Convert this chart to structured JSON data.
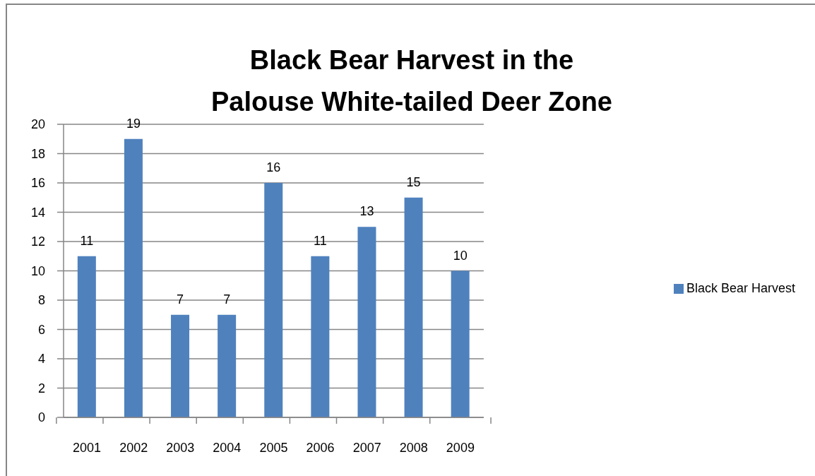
{
  "chart_data": {
    "type": "bar",
    "title": "Black Bear Harvest in the Palouse White-tailed Deer Zone",
    "categories": [
      "2001",
      "2002",
      "2003",
      "2004",
      "2005",
      "2006",
      "2007",
      "2008",
      "2009"
    ],
    "series": [
      {
        "name": "Black Bear Harvest",
        "color": "#4f81bd",
        "values": [
          11,
          19,
          7,
          7,
          16,
          11,
          13,
          15,
          10
        ]
      }
    ],
    "ylim": [
      0,
      20
    ],
    "yticks": [
      0,
      2,
      4,
      6,
      8,
      10,
      12,
      14,
      16,
      18,
      20
    ],
    "grid": "y",
    "legend": "right",
    "data_labels": true
  }
}
